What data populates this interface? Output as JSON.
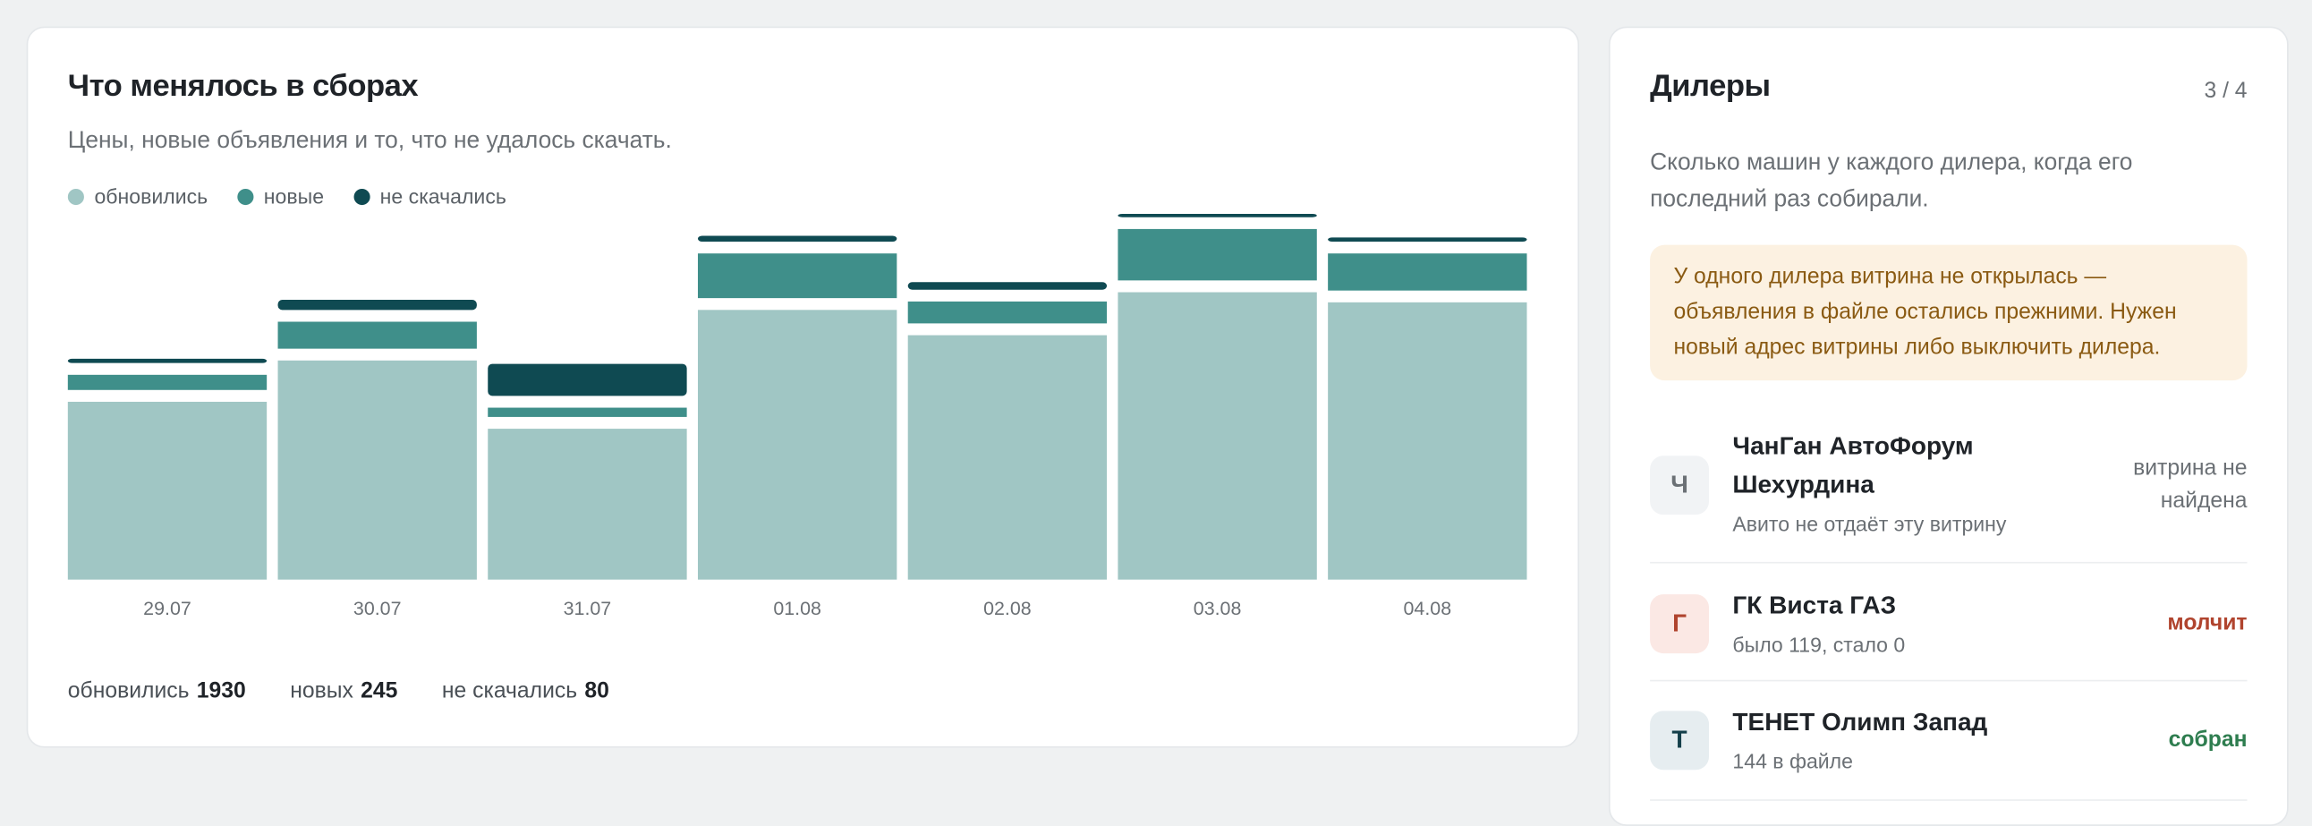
{
  "chart_data": {
    "type": "stacked-bar",
    "title": "Что менялось в сборах",
    "subtitle": "Цены, новые объявления и то, что не удалось скачать.",
    "categories": [
      "29.07",
      "30.07",
      "31.07",
      "01.08",
      "02.08",
      "03.08",
      "04.08"
    ],
    "series": [
      {
        "name": "обновились",
        "color": "#a0c6c4",
        "values": [
          211,
          260,
          179,
          320,
          290,
          341,
          329
        ]
      },
      {
        "name": "новые",
        "color": "#3f8f8a",
        "values": [
          18,
          32,
          11,
          53,
          26,
          61,
          44
        ]
      },
      {
        "name": "не скачались",
        "color": "#0f4a52",
        "values": [
          5,
          12,
          38,
          7,
          9,
          4,
          5
        ]
      }
    ],
    "summary": [
      {
        "label": "обновились",
        "value": 1930
      },
      {
        "label": "новых",
        "value": 245
      },
      {
        "label": "не скачались",
        "value": 80
      }
    ]
  },
  "dealers": {
    "title": "Дилеры",
    "counter": "3 / 4",
    "description": "Сколько машин у каждого дилера, когда его последний раз собирали.",
    "warning": "У одного дилера витрина не открылась — объявления в файле остались прежними. Нужен новый адрес витрины либо выключить дилера.",
    "items": [
      {
        "initial": "Ч",
        "name": "ЧанГан АвтоФорум Шехурдина",
        "note": "Авито не отдаёт эту витрину",
        "status": "витрина не найдена",
        "status_color": "#6b7075",
        "initial_color": "#6b7075",
        "initial_bg": "#f1f3f5"
      },
      {
        "initial": "Г",
        "name": "ГК Виста ГАЗ",
        "note": "было 119, стало 0",
        "status": "молчит",
        "status_color": "#b0442e",
        "initial_color": "#b0442e",
        "initial_bg": "#fbe8e4"
      },
      {
        "initial": "Т",
        "name": "ТЕНЕТ Олимп Запад",
        "note": "144 в файле",
        "status": "собран",
        "status_color": "#2e7d4f",
        "initial_color": "#143f4a",
        "initial_bg": "#e6edf0"
      }
    ]
  }
}
